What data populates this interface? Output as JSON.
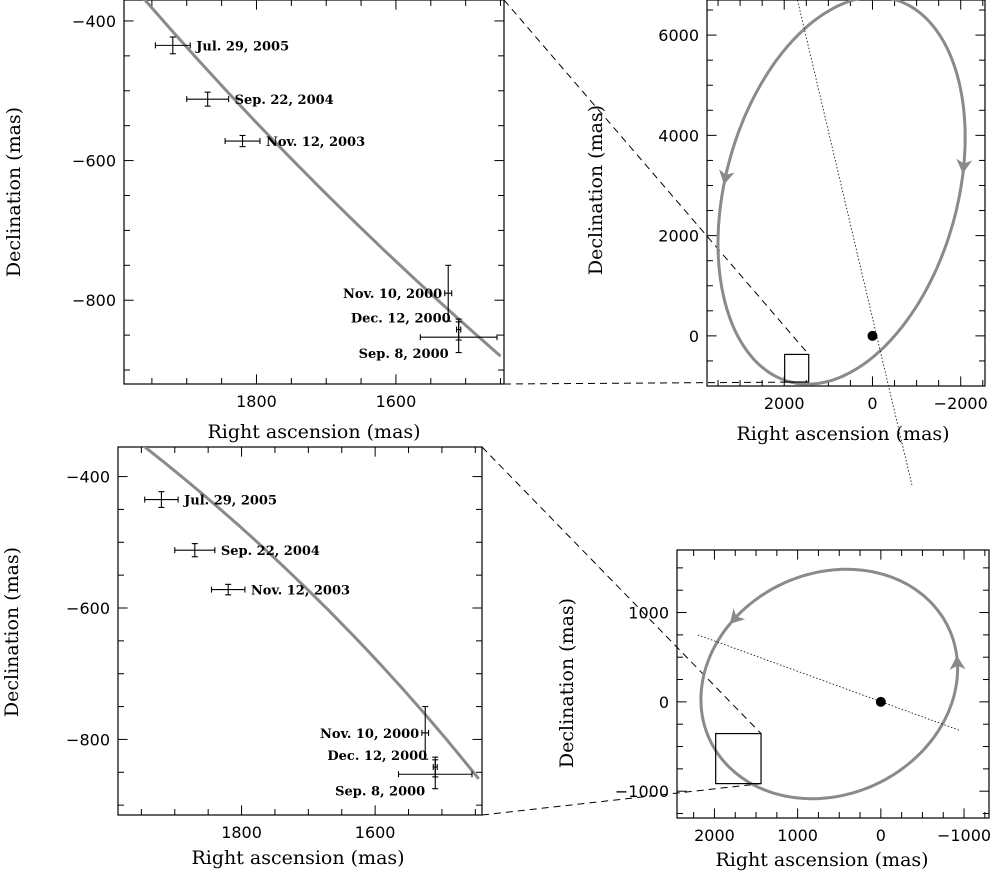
{
  "chart_data": [
    {
      "type": "scatter",
      "panel": "top-left",
      "xlabel": "Right ascension (mas)",
      "ylabel": "Declination (mas)",
      "xlim": [
        1990,
        1445
      ],
      "ylim": [
        -920,
        -370
      ],
      "x_ticks": [
        1800,
        1600
      ],
      "y_ticks": [
        -400,
        -600,
        -800
      ],
      "model_curve": {
        "x": [
          1990,
          1450
        ],
        "y": [
          -335,
          -880
        ],
        "bulge": 10
      },
      "points": [
        {
          "label": "Jul. 29, 2005",
          "x": 1920,
          "y": -435,
          "ex": 25,
          "ey": 12,
          "label_side": "right"
        },
        {
          "label": "Sep. 22, 2004",
          "x": 1870,
          "y": -512,
          "ex": 30,
          "ey": 10,
          "label_side": "right"
        },
        {
          "label": "Nov. 12, 2003",
          "x": 1820,
          "y": -572,
          "ex": 25,
          "ey": 8,
          "label_side": "right"
        },
        {
          "label": "Nov. 10, 2000",
          "x": 1525,
          "y": -790,
          "ex": 5,
          "ey": 40,
          "label_side": "left"
        },
        {
          "label": "Dec. 12, 2000",
          "x": 1510,
          "y": -842,
          "ex": 3,
          "ey": 15,
          "label_side": "left"
        },
        {
          "label": "Sep. 8, 2000",
          "x": 1510,
          "y": -853,
          "ex": 55,
          "ey": 22,
          "label_side": "left"
        }
      ]
    },
    {
      "type": "line",
      "panel": "top-right",
      "xlabel": "Right ascension (mas)",
      "ylabel": "Declination (mas)",
      "xlim": [
        3750,
        -2550
      ],
      "ylim": [
        -1000,
        6700
      ],
      "x_ticks": [
        2000,
        0,
        -2000
      ],
      "y_ticks": [
        0,
        2000,
        4000,
        6000
      ],
      "orbit_ellipse": {
        "center": [
          700,
          2900
        ],
        "semi_axes": [
          2600,
          4000
        ],
        "rotation_deg": 20
      },
      "line_of_apsides": {
        "x": [
          1700,
          -900
        ],
        "y": [
          6700,
          -3000
        ]
      },
      "focus": {
        "x": 0,
        "y": 0
      },
      "zoom_box": {
        "x": [
          1990,
          1445
        ],
        "y": [
          -920,
          -370
        ]
      }
    },
    {
      "type": "scatter",
      "panel": "bottom-left",
      "xlabel": "Right ascension (mas)",
      "ylabel": "Declination (mas)",
      "xlim": [
        1985,
        1440
      ],
      "ylim": [
        -915,
        -355
      ],
      "x_ticks": [
        1800,
        1600
      ],
      "y_ticks": [
        -400,
        -600,
        -800
      ],
      "model_curve": {
        "x": [
          1970,
          1445
        ],
        "y": [
          -335,
          -860
        ],
        "bulge": -15
      },
      "points": [
        {
          "label": "Jul. 29, 2005",
          "x": 1920,
          "y": -435,
          "ex": 25,
          "ey": 12,
          "label_side": "right"
        },
        {
          "label": "Sep. 22, 2004",
          "x": 1870,
          "y": -512,
          "ex": 30,
          "ey": 10,
          "label_side": "right"
        },
        {
          "label": "Nov. 12, 2003",
          "x": 1820,
          "y": -572,
          "ex": 25,
          "ey": 8,
          "label_side": "right"
        },
        {
          "label": "Nov. 10, 2000",
          "x": 1525,
          "y": -790,
          "ex": 5,
          "ey": 40,
          "label_side": "left"
        },
        {
          "label": "Dec. 12, 2000",
          "x": 1510,
          "y": -842,
          "ex": 3,
          "ey": 15,
          "label_side": "left"
        },
        {
          "label": "Sep. 8, 2000",
          "x": 1510,
          "y": -853,
          "ex": 55,
          "ey": 22,
          "label_side": "left"
        }
      ]
    },
    {
      "type": "line",
      "panel": "bottom-right",
      "xlabel": "Right ascension (mas)",
      "ylabel": "Declination (mas)",
      "xlim": [
        2450,
        -1300
      ],
      "ylim": [
        -1300,
        1700
      ],
      "x_ticks": [
        2000,
        1000,
        0,
        -1000
      ],
      "y_ticks": [
        1000,
        0,
        -1000
      ],
      "orbit_ellipse": {
        "center": [
          620,
          200
        ],
        "semi_axes": [
          1570,
          1250
        ],
        "rotation_deg": -18
      },
      "line_of_apsides": {
        "x": [
          2200,
          -950
        ],
        "y": [
          750,
          -320
        ]
      },
      "focus": {
        "x": 0,
        "y": 0
      },
      "zoom_box": {
        "x": [
          1985,
          1440
        ],
        "y": [
          -915,
          -355
        ]
      }
    }
  ]
}
